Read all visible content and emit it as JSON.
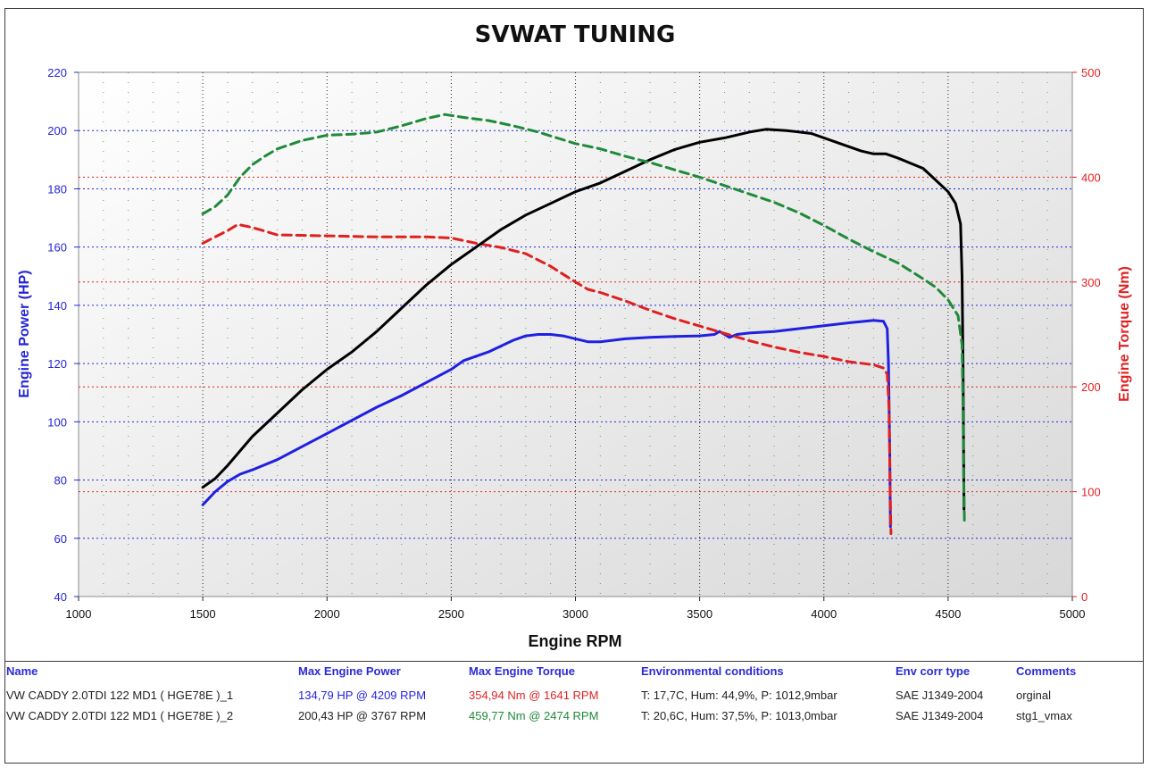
{
  "chart_data": {
    "type": "line",
    "title": "SVWAT TUNING",
    "xlabel": "Engine RPM",
    "ylabel_left": "Engine Power (HP)",
    "ylabel_right": "Engine Torque (Nm)",
    "xlim": [
      1000,
      5000
    ],
    "ylim_left": [
      40,
      220
    ],
    "ylim_right": [
      0,
      500
    ],
    "x_ticks": [
      1000,
      1500,
      2000,
      2500,
      3000,
      3500,
      4000,
      4500,
      5000
    ],
    "y_left_ticks": [
      40,
      60,
      80,
      100,
      120,
      140,
      160,
      180,
      200,
      220
    ],
    "y_right_ticks": [
      0,
      100,
      200,
      300,
      400,
      500
    ],
    "grid": true,
    "series": [
      {
        "name": "VW CADDY 2.0TDI 122 MD1 ( HGE78E )_1",
        "quantity": "power",
        "axis": "left",
        "color": "#2020e0",
        "dash": "solid",
        "points": [
          [
            1500,
            71.5
          ],
          [
            1550,
            76
          ],
          [
            1600,
            79.5
          ],
          [
            1650,
            82
          ],
          [
            1700,
            83.5
          ],
          [
            1800,
            87
          ],
          [
            1900,
            91.5
          ],
          [
            2000,
            96
          ],
          [
            2100,
            100.5
          ],
          [
            2200,
            105
          ],
          [
            2300,
            109
          ],
          [
            2400,
            113.5
          ],
          [
            2500,
            118
          ],
          [
            2550,
            121
          ],
          [
            2650,
            124
          ],
          [
            2750,
            128
          ],
          [
            2800,
            129.5
          ],
          [
            2850,
            130
          ],
          [
            2900,
            130
          ],
          [
            2950,
            129.5
          ],
          [
            3000,
            128.5
          ],
          [
            3050,
            127.5
          ],
          [
            3100,
            127.5
          ],
          [
            3200,
            128.5
          ],
          [
            3300,
            129
          ],
          [
            3400,
            129.3
          ],
          [
            3500,
            129.5
          ],
          [
            3560,
            130
          ],
          [
            3580,
            131
          ],
          [
            3600,
            130
          ],
          [
            3620,
            129
          ],
          [
            3650,
            130
          ],
          [
            3700,
            130.5
          ],
          [
            3800,
            131
          ],
          [
            3900,
            132
          ],
          [
            4000,
            133
          ],
          [
            4100,
            134
          ],
          [
            4200,
            134.8
          ],
          [
            4240,
            134.5
          ],
          [
            4255,
            132
          ],
          [
            4260,
            120
          ],
          [
            4265,
            90
          ],
          [
            4268,
            64
          ]
        ]
      },
      {
        "name": "VW CADDY 2.0TDI 122 MD1 ( HGE78E )_1",
        "quantity": "torque",
        "axis": "right",
        "color": "#e02020",
        "dash": "dashed",
        "points": [
          [
            1500,
            337
          ],
          [
            1550,
            343
          ],
          [
            1600,
            349
          ],
          [
            1641,
            354.9
          ],
          [
            1700,
            352
          ],
          [
            1800,
            345
          ],
          [
            2000,
            344
          ],
          [
            2200,
            343
          ],
          [
            2400,
            343
          ],
          [
            2500,
            342
          ],
          [
            2600,
            337
          ],
          [
            2700,
            333
          ],
          [
            2800,
            327
          ],
          [
            2900,
            315
          ],
          [
            3000,
            300
          ],
          [
            3050,
            293
          ],
          [
            3100,
            290
          ],
          [
            3200,
            282
          ],
          [
            3300,
            273
          ],
          [
            3400,
            265
          ],
          [
            3500,
            258
          ],
          [
            3600,
            251
          ],
          [
            3700,
            244
          ],
          [
            3800,
            238
          ],
          [
            3900,
            233
          ],
          [
            4000,
            229
          ],
          [
            4100,
            224
          ],
          [
            4200,
            221
          ],
          [
            4240,
            218
          ],
          [
            4255,
            212
          ],
          [
            4262,
            180
          ],
          [
            4266,
            110
          ],
          [
            4270,
            60
          ]
        ]
      },
      {
        "name": "VW CADDY 2.0TDI 122 MD1 ( HGE78E )_2",
        "quantity": "power",
        "axis": "left",
        "color": "#000000",
        "dash": "solid",
        "points": [
          [
            1500,
            77.5
          ],
          [
            1550,
            80.5
          ],
          [
            1600,
            85
          ],
          [
            1650,
            90
          ],
          [
            1700,
            95
          ],
          [
            1800,
            103
          ],
          [
            1900,
            111
          ],
          [
            2000,
            118
          ],
          [
            2100,
            124
          ],
          [
            2200,
            131
          ],
          [
            2300,
            139
          ],
          [
            2400,
            147
          ],
          [
            2500,
            154
          ],
          [
            2600,
            160
          ],
          [
            2700,
            166
          ],
          [
            2800,
            171
          ],
          [
            2900,
            175
          ],
          [
            3000,
            179
          ],
          [
            3100,
            182
          ],
          [
            3200,
            186
          ],
          [
            3300,
            190
          ],
          [
            3400,
            193.5
          ],
          [
            3500,
            196
          ],
          [
            3600,
            197.5
          ],
          [
            3700,
            199.5
          ],
          [
            3767,
            200.43
          ],
          [
            3850,
            200
          ],
          [
            3950,
            199
          ],
          [
            4050,
            196
          ],
          [
            4150,
            193
          ],
          [
            4200,
            192
          ],
          [
            4250,
            192
          ],
          [
            4300,
            190.5
          ],
          [
            4400,
            187
          ],
          [
            4500,
            179
          ],
          [
            4530,
            175
          ],
          [
            4550,
            168
          ],
          [
            4556,
            150
          ],
          [
            4560,
            120
          ],
          [
            4562,
            95
          ],
          [
            4564,
            70
          ]
        ]
      },
      {
        "name": "VW CADDY 2.0TDI 122 MD1 ( HGE78E )_2",
        "quantity": "torque",
        "axis": "right",
        "color": "#1f8a3a",
        "dash": "dashed",
        "points": [
          [
            1500,
            365
          ],
          [
            1550,
            372
          ],
          [
            1600,
            383
          ],
          [
            1650,
            400
          ],
          [
            1700,
            412
          ],
          [
            1750,
            420
          ],
          [
            1800,
            427
          ],
          [
            1900,
            435
          ],
          [
            2000,
            440
          ],
          [
            2100,
            441
          ],
          [
            2200,
            443
          ],
          [
            2300,
            449
          ],
          [
            2400,
            456
          ],
          [
            2474,
            459.77
          ],
          [
            2550,
            457
          ],
          [
            2650,
            454
          ],
          [
            2750,
            449
          ],
          [
            2850,
            443
          ],
          [
            3000,
            432
          ],
          [
            3100,
            427
          ],
          [
            3200,
            420
          ],
          [
            3300,
            414
          ],
          [
            3400,
            407
          ],
          [
            3500,
            400
          ],
          [
            3600,
            392
          ],
          [
            3700,
            384
          ],
          [
            3800,
            376
          ],
          [
            3900,
            366
          ],
          [
            4000,
            354
          ],
          [
            4100,
            341
          ],
          [
            4200,
            329
          ],
          [
            4300,
            318
          ],
          [
            4400,
            303
          ],
          [
            4450,
            295
          ],
          [
            4500,
            283
          ],
          [
            4540,
            268
          ],
          [
            4556,
            240
          ],
          [
            4560,
            180
          ],
          [
            4563,
            110
          ],
          [
            4566,
            70
          ]
        ]
      }
    ]
  },
  "results": {
    "headers": {
      "name": "Name",
      "max_power": "Max Engine Power",
      "max_torque": "Max Engine Torque",
      "env": "Environmental conditions",
      "corr": "Env corr type",
      "comments": "Comments"
    },
    "rows": [
      {
        "name": "VW CADDY 2.0TDI 122 MD1 ( HGE78E )_1",
        "max_power": "134,79 HP @ 4209 RPM",
        "max_torque": "354,94 Nm @ 1641 RPM",
        "env": "T: 17,7C, Hum: 44,9%, P: 1012,9mbar",
        "corr": "SAE J1349-2004",
        "comments": "orginal"
      },
      {
        "name": "VW CADDY 2.0TDI 122 MD1 ( HGE78E )_2",
        "max_power": "200,43 HP @ 3767 RPM",
        "max_torque": "459,77 Nm @ 2474 RPM",
        "env": "T: 20,6C, Hum: 37,5%, P: 1013,0mbar",
        "corr": "SAE J1349-2004",
        "comments": "stg1_vmax"
      }
    ]
  }
}
